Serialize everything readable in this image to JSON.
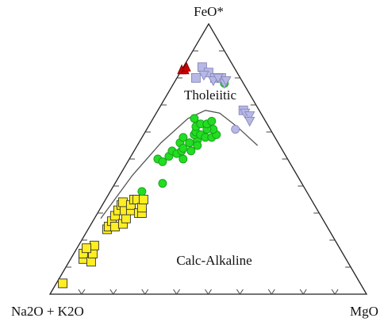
{
  "chart_data": {
    "type": "ternary-scatter",
    "apex_labels": {
      "top": "FeO*",
      "left": "Na2O + K2O",
      "right": "MgO"
    },
    "field_labels": {
      "upper": "Tholeiitic",
      "lower": "Calc-Alkaline"
    },
    "divider_line": [
      {
        "a": 0.7,
        "f": 0.28,
        "m": 0.02
      },
      {
        "a": 0.52,
        "f": 0.44,
        "m": 0.04
      },
      {
        "a": 0.37,
        "f": 0.56,
        "m": 0.07
      },
      {
        "a": 0.24,
        "f": 0.65,
        "m": 0.11
      },
      {
        "a": 0.17,
        "f": 0.68,
        "m": 0.15
      },
      {
        "a": 0.13,
        "f": 0.67,
        "m": 0.2
      },
      {
        "a": 0.1,
        "f": 0.62,
        "m": 0.28
      },
      {
        "a": 0.07,
        "f": 0.55,
        "m": 0.38
      }
    ],
    "colors": {
      "green_circle": "#22dd22",
      "yellow_square": "#ffee22",
      "lavender": "#b8b8e6",
      "red_triangle": "#cc0000"
    },
    "series": [
      {
        "marker": "square",
        "color": "yellow",
        "points": [
          {
            "a": 0.94,
            "f": 0.04,
            "m": 0.02
          },
          {
            "a": 0.83,
            "f": 0.13,
            "m": 0.04
          },
          {
            "a": 0.82,
            "f": 0.15,
            "m": 0.03
          },
          {
            "a": 0.81,
            "f": 0.12,
            "m": 0.07
          },
          {
            "a": 0.79,
            "f": 0.15,
            "m": 0.06
          },
          {
            "a": 0.77,
            "f": 0.18,
            "m": 0.05
          },
          {
            "a": 0.8,
            "f": 0.17,
            "m": 0.03
          },
          {
            "a": 0.7,
            "f": 0.24,
            "m": 0.06
          },
          {
            "a": 0.69,
            "f": 0.25,
            "m": 0.06
          },
          {
            "a": 0.67,
            "f": 0.27,
            "m": 0.06
          },
          {
            "a": 0.67,
            "f": 0.25,
            "m": 0.08
          },
          {
            "a": 0.65,
            "f": 0.29,
            "m": 0.06
          },
          {
            "a": 0.64,
            "f": 0.26,
            "m": 0.1
          },
          {
            "a": 0.63,
            "f": 0.31,
            "m": 0.06
          },
          {
            "a": 0.62,
            "f": 0.28,
            "m": 0.1
          },
          {
            "a": 0.61,
            "f": 0.33,
            "m": 0.06
          },
          {
            "a": 0.61,
            "f": 0.31,
            "m": 0.08
          },
          {
            "a": 0.6,
            "f": 0.34,
            "m": 0.06
          },
          {
            "a": 0.59,
            "f": 0.31,
            "m": 0.1
          },
          {
            "a": 0.58,
            "f": 0.33,
            "m": 0.09
          },
          {
            "a": 0.57,
            "f": 0.3,
            "m": 0.13
          },
          {
            "a": 0.56,
            "f": 0.35,
            "m": 0.09
          },
          {
            "a": 0.56,
            "f": 0.3,
            "m": 0.14
          },
          {
            "a": 0.55,
            "f": 0.35,
            "m": 0.1
          },
          {
            "a": 0.55,
            "f": 0.32,
            "m": 0.13
          },
          {
            "a": 0.53,
            "f": 0.35,
            "m": 0.12
          }
        ]
      },
      {
        "marker": "circle",
        "color": "green",
        "points": [
          {
            "a": 0.52,
            "f": 0.38,
            "m": 0.1
          },
          {
            "a": 0.44,
            "f": 0.41,
            "m": 0.15
          },
          {
            "a": 0.41,
            "f": 0.5,
            "m": 0.09
          },
          {
            "a": 0.4,
            "f": 0.49,
            "m": 0.11
          },
          {
            "a": 0.37,
            "f": 0.51,
            "m": 0.12
          },
          {
            "a": 0.35,
            "f": 0.53,
            "m": 0.12
          },
          {
            "a": 0.34,
            "f": 0.52,
            "m": 0.14
          },
          {
            "a": 0.33,
            "f": 0.5,
            "m": 0.17
          },
          {
            "a": 0.32,
            "f": 0.53,
            "m": 0.15
          },
          {
            "a": 0.31,
            "f": 0.56,
            "m": 0.13
          },
          {
            "a": 0.31,
            "f": 0.54,
            "m": 0.15
          },
          {
            "a": 0.29,
            "f": 0.53,
            "m": 0.18
          },
          {
            "a": 0.28,
            "f": 0.56,
            "m": 0.16
          },
          {
            "a": 0.29,
            "f": 0.58,
            "m": 0.13
          },
          {
            "a": 0.25,
            "f": 0.57,
            "m": 0.18
          },
          {
            "a": 0.25,
            "f": 0.59,
            "m": 0.16
          },
          {
            "a": 0.24,
            "f": 0.6,
            "m": 0.16
          },
          {
            "a": 0.23,
            "f": 0.59,
            "m": 0.18
          },
          {
            "a": 0.26,
            "f": 0.55,
            "m": 0.19
          },
          {
            "a": 0.22,
            "f": 0.58,
            "m": 0.2
          },
          {
            "a": 0.23,
            "f": 0.62,
            "m": 0.15
          },
          {
            "a": 0.2,
            "f": 0.58,
            "m": 0.22
          },
          {
            "a": 0.21,
            "f": 0.63,
            "m": 0.16
          },
          {
            "a": 0.18,
            "f": 0.59,
            "m": 0.23
          },
          {
            "a": 0.18,
            "f": 0.61,
            "m": 0.21
          },
          {
            "a": 0.2,
            "f": 0.61,
            "m": 0.19
          },
          {
            "a": 0.22,
            "f": 0.65,
            "m": 0.13
          },
          {
            "a": 0.19,
            "f": 0.63,
            "m": 0.18
          },
          {
            "a": 0.17,
            "f": 0.64,
            "m": 0.19
          },
          {
            "a": 0.06,
            "f": 0.78,
            "m": 0.16
          }
        ]
      },
      {
        "marker": "circle",
        "color": "lavender",
        "points": [
          {
            "a": 0.11,
            "f": 0.61,
            "m": 0.28
          }
        ]
      },
      {
        "marker": "square",
        "color": "lavender",
        "points": [
          {
            "a": 0.14,
            "f": 0.8,
            "m": 0.06
          },
          {
            "a": 0.1,
            "f": 0.84,
            "m": 0.06
          },
          {
            "a": 0.09,
            "f": 0.82,
            "m": 0.09
          },
          {
            "a": 0.08,
            "f": 0.8,
            "m": 0.12
          },
          {
            "a": 0.06,
            "f": 0.8,
            "m": 0.14
          },
          {
            "a": 0.05,
            "f": 0.68,
            "m": 0.27
          }
        ]
      },
      {
        "marker": "triangle-down",
        "color": "lavender",
        "points": [
          {
            "a": 0.11,
            "f": 0.81,
            "m": 0.08
          },
          {
            "a": 0.09,
            "f": 0.79,
            "m": 0.12
          },
          {
            "a": 0.07,
            "f": 0.8,
            "m": 0.13
          },
          {
            "a": 0.06,
            "f": 0.78,
            "m": 0.16
          },
          {
            "a": 0.05,
            "f": 0.79,
            "m": 0.16
          },
          {
            "a": 0.05,
            "f": 0.67,
            "m": 0.28
          },
          {
            "a": 0.04,
            "f": 0.66,
            "m": 0.3
          },
          {
            "a": 0.05,
            "f": 0.64,
            "m": 0.31
          }
        ]
      },
      {
        "marker": "triangle-up",
        "color": "red",
        "points": [
          {
            "a": 0.17,
            "f": 0.83,
            "m": 0.0
          },
          {
            "a": 0.16,
            "f": 0.83,
            "m": 0.01
          },
          {
            "a": 0.15,
            "f": 0.84,
            "m": 0.01
          }
        ]
      }
    ]
  }
}
